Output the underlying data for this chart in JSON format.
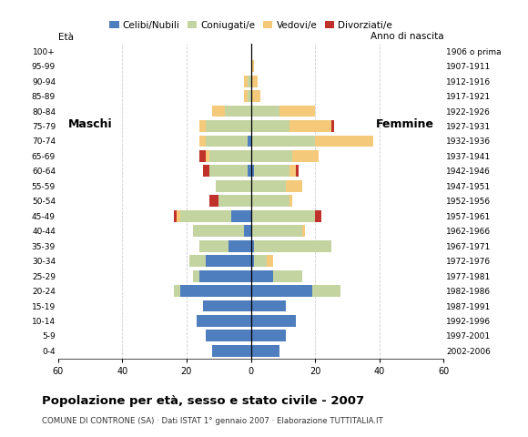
{
  "age_groups": [
    "0-4",
    "5-9",
    "10-14",
    "15-19",
    "20-24",
    "25-29",
    "30-34",
    "35-39",
    "40-44",
    "45-49",
    "50-54",
    "55-59",
    "60-64",
    "65-69",
    "70-74",
    "75-79",
    "80-84",
    "85-89",
    "90-94",
    "95-99",
    "100+"
  ],
  "birth_years": [
    "2002-2006",
    "1997-2001",
    "1992-1996",
    "1987-1991",
    "1982-1986",
    "1977-1981",
    "1972-1976",
    "1967-1971",
    "1962-1966",
    "1957-1961",
    "1952-1956",
    "1947-1951",
    "1942-1946",
    "1937-1941",
    "1932-1936",
    "1927-1931",
    "1922-1926",
    "1917-1921",
    "1912-1916",
    "1907-1911",
    "1906 o prima"
  ],
  "males": {
    "celibi": [
      12,
      14,
      17,
      15,
      22,
      16,
      14,
      7,
      2,
      6,
      0,
      0,
      1,
      0,
      1,
      0,
      0,
      0,
      0,
      0,
      0
    ],
    "coniugati": [
      0,
      0,
      0,
      0,
      2,
      2,
      5,
      9,
      16,
      16,
      10,
      11,
      12,
      13,
      13,
      14,
      8,
      1,
      1,
      0,
      0
    ],
    "vedovi": [
      0,
      0,
      0,
      0,
      0,
      0,
      0,
      0,
      0,
      1,
      0,
      0,
      0,
      1,
      2,
      2,
      4,
      1,
      1,
      0,
      0
    ],
    "divorziati": [
      0,
      0,
      0,
      0,
      0,
      0,
      0,
      0,
      0,
      1,
      3,
      0,
      2,
      2,
      0,
      0,
      0,
      0,
      0,
      0,
      0
    ]
  },
  "females": {
    "nubili": [
      9,
      11,
      14,
      11,
      19,
      7,
      1,
      1,
      0,
      0,
      0,
      0,
      1,
      0,
      0,
      0,
      0,
      0,
      0,
      0,
      0
    ],
    "coniugate": [
      0,
      0,
      0,
      0,
      9,
      9,
      4,
      24,
      16,
      20,
      12,
      11,
      11,
      13,
      20,
      12,
      9,
      0,
      0,
      0,
      0
    ],
    "vedove": [
      0,
      0,
      0,
      0,
      0,
      0,
      2,
      0,
      1,
      0,
      1,
      5,
      2,
      8,
      18,
      13,
      11,
      3,
      2,
      1,
      0
    ],
    "divorziate": [
      0,
      0,
      0,
      0,
      0,
      0,
      0,
      0,
      0,
      2,
      0,
      0,
      1,
      0,
      0,
      1,
      0,
      0,
      0,
      0,
      0
    ]
  },
  "colors": {
    "celibi_nubili": "#4f7ebe",
    "coniugati": "#c4d4a0",
    "vedovi": "#f5c97a",
    "divorziati": "#c0312b"
  },
  "title": "Popolazione per età, sesso e stato civile - 2007",
  "subtitle": "COMUNE DI CONTRONE (SA) · Dati ISTAT 1° gennaio 2007 · Elaborazione TUTTITALIA.IT",
  "xlabel_left": "Maschi",
  "xlabel_right": "Femmine",
  "ylabel_age": "Età",
  "ylabel_birth": "Anno di nascita",
  "xlim": 60,
  "legend_labels": [
    "Celibi/Nubili",
    "Coniugati/e",
    "Vedovi/e",
    "Divorziati/e"
  ],
  "background_color": "#ffffff",
  "grid_color": "#cccccc"
}
